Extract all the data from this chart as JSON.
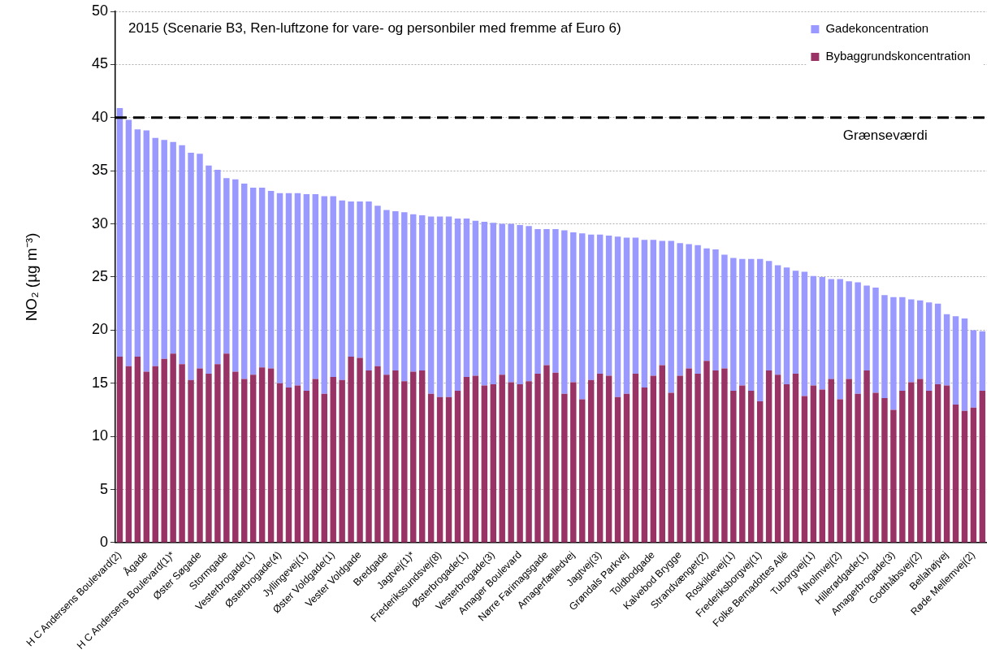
{
  "chart_data": {
    "type": "bar",
    "stacked": true,
    "title": "2015 (Scenarie B3, Ren-luftzone for vare- og personbiler med fremme af Euro 6)",
    "ylabel": "NO₂ (µg m⁻³)",
    "categories": [
      "H C Andersens Boulevard(2)",
      null,
      null,
      "Ågade",
      null,
      null,
      "H C Andersens Boulevard(1)*",
      null,
      null,
      "Øster Søgade",
      null,
      null,
      "Stormgade",
      null,
      null,
      "Vesterbrogade(1)",
      null,
      null,
      "Østerbrogade(4)",
      null,
      null,
      "Jyllingevej(1)",
      null,
      null,
      "Øster Voldgade(1)",
      null,
      null,
      "Vester Voldgade",
      null,
      null,
      "Bredgade",
      null,
      null,
      "Jagtvej(1)*",
      null,
      null,
      "Frederikssundsvej(8)",
      null,
      null,
      "Østerbrogade(1)",
      null,
      null,
      "Vesterbrogade(3)",
      null,
      null,
      "Amager Boulevard",
      null,
      null,
      "Nørre Farimagsgade",
      null,
      null,
      "Amagerfælledvej",
      null,
      null,
      "Jagtvej(3)",
      null,
      null,
      "Grøndals Parkvej",
      null,
      null,
      "Toldbodgade",
      null,
      null,
      "Kalvebod Brygge",
      null,
      null,
      "Strandvænget(2)",
      null,
      null,
      "Roskildevej(1)",
      null,
      null,
      "Frederiksborgvej(1)",
      null,
      null,
      "Folke Bernadottes Allé",
      null,
      null,
      "Tuborgvej(1)",
      null,
      null,
      "Ålholmvej(2)",
      null,
      null,
      "Hillerødgade(1)",
      null,
      null,
      "Amagerbrogade(3)",
      null,
      null,
      "Godthåbsvej(2)",
      null,
      null,
      "Bellahøjvej",
      null,
      null,
      "Røde Mellemvej(2)",
      null
    ],
    "series": [
      {
        "name": "Bybaggrundskoncentration",
        "color": "#993366",
        "values": [
          17.5,
          16.6,
          17.5,
          16.1,
          16.6,
          17.3,
          17.8,
          16.8,
          15.3,
          16.4,
          15.9,
          16.8,
          17.8,
          16.1,
          15.4,
          15.8,
          16.5,
          16.4,
          15.0,
          14.6,
          14.8,
          14.3,
          15.4,
          14.0,
          15.6,
          15.3,
          17.5,
          17.4,
          16.2,
          16.6,
          15.8,
          16.2,
          15.2,
          16.1,
          16.2,
          14.0,
          13.7,
          13.7,
          14.3,
          15.6,
          15.7,
          14.8,
          14.9,
          15.8,
          15.1,
          14.9,
          15.2,
          15.9,
          16.7,
          16.0,
          14.0,
          15.1,
          13.5,
          15.3,
          15.9,
          15.7,
          13.7,
          14.0,
          15.9,
          14.6,
          15.7,
          16.7,
          14.1,
          15.7,
          16.4,
          15.9,
          17.1,
          16.2,
          16.4,
          14.3,
          14.8,
          14.3,
          13.3,
          16.2,
          15.8,
          14.9,
          15.9,
          13.8,
          14.8,
          14.4,
          15.4,
          13.5,
          15.4,
          14.0,
          16.2,
          14.1,
          13.6,
          12.5,
          14.3,
          15.1,
          15.4,
          14.3,
          14.9,
          14.8,
          13.0,
          12.4,
          12.7,
          14.3
        ]
      },
      {
        "name": "Gadekoncentration",
        "color": "#9999ff",
        "values": [
          23.4,
          23.2,
          21.4,
          22.7,
          21.5,
          20.6,
          19.9,
          20.6,
          21.4,
          20.2,
          19.6,
          18.3,
          16.5,
          18.1,
          18.4,
          17.6,
          16.9,
          16.7,
          17.9,
          18.3,
          18.1,
          18.5,
          17.4,
          18.6,
          17.0,
          16.9,
          14.6,
          14.7,
          15.9,
          15.1,
          15.5,
          15.0,
          15.9,
          14.8,
          14.6,
          16.7,
          17.0,
          17.0,
          16.2,
          14.9,
          14.6,
          15.4,
          15.2,
          14.2,
          14.9,
          15.0,
          14.6,
          13.6,
          12.8,
          13.5,
          15.4,
          14.1,
          15.6,
          13.7,
          13.1,
          13.2,
          15.1,
          14.7,
          12.8,
          13.9,
          12.8,
          11.7,
          14.3,
          12.5,
          11.7,
          12.1,
          10.6,
          11.4,
          10.7,
          12.5,
          11.9,
          12.4,
          13.4,
          10.3,
          10.3,
          11.0,
          9.7,
          11.7,
          10.3,
          10.6,
          9.4,
          11.3,
          9.2,
          10.5,
          8.0,
          9.9,
          9.7,
          10.6,
          8.8,
          7.8,
          7.4,
          8.3,
          7.6,
          6.7,
          8.3,
          8.7,
          7.3,
          5.6
        ]
      }
    ],
    "ylim": [
      0,
      50
    ],
    "yticks": [
      0,
      5,
      10,
      15,
      20,
      25,
      30,
      35,
      40,
      45,
      50
    ],
    "grid": "y",
    "legend": "top right",
    "ref_lines": [
      {
        "axis": "y",
        "value": 40,
        "label": "Grænseværdi",
        "color": "#000000",
        "line_style": "dashed"
      }
    ]
  }
}
